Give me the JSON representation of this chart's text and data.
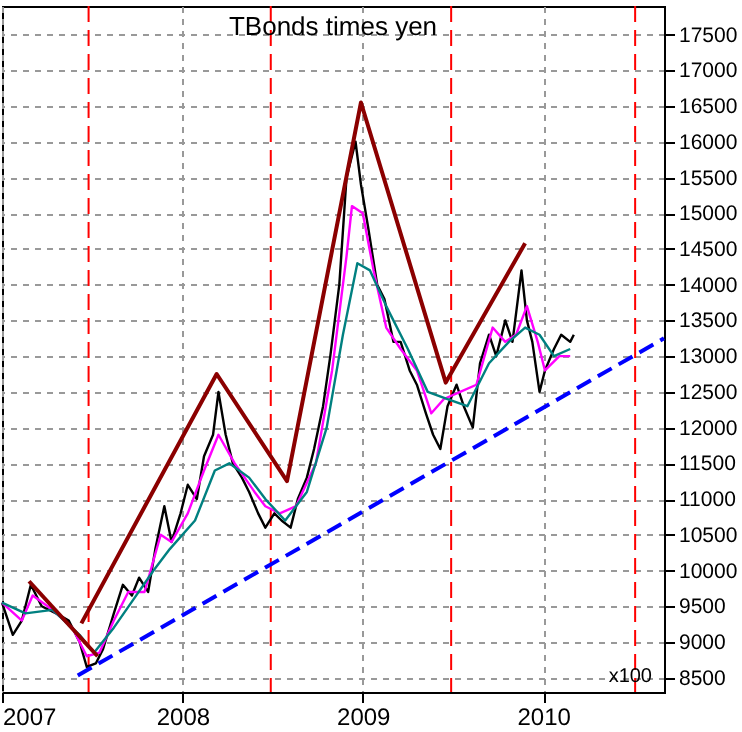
{
  "chart_data": {
    "type": "line",
    "title": "TBonds times yen",
    "xlim": [
      2007.0,
      2010.67
    ],
    "xticks": [
      2007,
      2008,
      2009,
      2010
    ],
    "ylim": [
      8300,
      17900
    ],
    "yticks": [
      8500,
      9000,
      9500,
      10000,
      10500,
      11000,
      11500,
      12000,
      12500,
      13000,
      13500,
      14000,
      14500,
      15000,
      15500,
      16000,
      16500,
      17000,
      17500
    ],
    "grid": true,
    "line_style": "solid",
    "annotations": [
      "x100"
    ],
    "ref_lines": [
      {
        "axis": "x",
        "value": 2007.48,
        "color": "#ff0000",
        "line_style": "dashed"
      },
      {
        "axis": "x",
        "value": 2008.49,
        "color": "#ff0000",
        "line_style": "dashed"
      },
      {
        "axis": "x",
        "value": 2009.49,
        "color": "#ff0000",
        "line_style": "dashed"
      },
      {
        "axis": "x",
        "value": 2010.51,
        "color": "#ff0000",
        "line_style": "dashed"
      }
    ],
    "series": [
      {
        "color": "#000000",
        "x": [
          2007.0,
          2007.06,
          2007.11,
          2007.16,
          2007.22,
          2007.3,
          2007.37,
          2007.43,
          2007.47,
          2007.52,
          2007.56,
          2007.62,
          2007.67,
          2007.72,
          2007.76,
          2007.81,
          2007.85,
          2007.9,
          2007.94,
          2007.99,
          2008.03,
          2008.08,
          2008.12,
          2008.17,
          2008.2,
          2008.24,
          2008.28,
          2008.33,
          2008.37,
          2008.42,
          2008.46,
          2008.51,
          2008.55,
          2008.6,
          2008.64,
          2008.69,
          2008.73,
          2008.78,
          2008.82,
          2008.87,
          2008.91,
          2008.96,
          2008.99,
          2009.03,
          2009.08,
          2009.12,
          2009.17,
          2009.21,
          2009.26,
          2009.3,
          2009.35,
          2009.39,
          2009.43,
          2009.47,
          2009.52,
          2009.56,
          2009.61,
          2009.65,
          2009.7,
          2009.74,
          2009.79,
          2009.83,
          2009.88,
          2009.91,
          2009.94,
          2009.98,
          2010.01,
          2010.06,
          2010.1,
          2010.15,
          2010.17
        ],
        "values": [
          9550,
          9100,
          9300,
          9800,
          9500,
          9400,
          9300,
          9000,
          8650,
          8700,
          8900,
          9400,
          9800,
          9650,
          9900,
          9700,
          10300,
          10900,
          10400,
          10800,
          11200,
          11000,
          11600,
          11900,
          12500,
          11900,
          11500,
          11300,
          11100,
          10800,
          10600,
          10800,
          10700,
          10600,
          11000,
          11300,
          11700,
          12300,
          13000,
          14000,
          15500,
          16000,
          15400,
          14800,
          14000,
          13800,
          13200,
          13200,
          12800,
          12600,
          12200,
          11900,
          11700,
          12300,
          12600,
          12300,
          12000,
          12900,
          13300,
          13000,
          13500,
          13200,
          14200,
          13500,
          13200,
          12500,
          12800,
          13100,
          13300,
          13200,
          13300
        ]
      },
      {
        "color": "#ff00ff",
        "x": [
          2007.0,
          2007.11,
          2007.17,
          2007.28,
          2007.39,
          2007.47,
          2007.54,
          2007.62,
          2007.7,
          2007.79,
          2007.88,
          2007.94,
          2008.03,
          2008.12,
          2008.2,
          2008.29,
          2008.4,
          2008.46,
          2008.54,
          2008.63,
          2008.74,
          2008.83,
          2008.91,
          2008.94,
          2009.0,
          2009.06,
          2009.13,
          2009.21,
          2009.3,
          2009.38,
          2009.45,
          2009.54,
          2009.63,
          2009.72,
          2009.79,
          2009.85,
          2009.91,
          2009.97,
          2010.01,
          2010.09,
          2010.15
        ],
        "values": [
          9550,
          9300,
          9650,
          9450,
          9200,
          8800,
          8850,
          9300,
          9700,
          9700,
          10500,
          10400,
          10800,
          11400,
          11900,
          11500,
          11100,
          10900,
          10800,
          10900,
          11500,
          12800,
          14400,
          15100,
          15000,
          14200,
          13400,
          13100,
          12800,
          12200,
          12400,
          12500,
          12600,
          13400,
          13200,
          13300,
          13700,
          13200,
          12800,
          13000,
          13000
        ]
      },
      {
        "color": "#008080",
        "x": [
          2007.0,
          2007.13,
          2007.28,
          2007.43,
          2007.51,
          2007.62,
          2007.73,
          2007.84,
          2007.93,
          2008.07,
          2008.18,
          2008.26,
          2008.37,
          2008.46,
          2008.57,
          2008.69,
          2008.8,
          2008.89,
          2008.97,
          2009.04,
          2009.13,
          2009.25,
          2009.36,
          2009.47,
          2009.58,
          2009.7,
          2009.81,
          2009.9,
          2009.98,
          2010.06,
          2010.15
        ],
        "values": [
          9550,
          9400,
          9450,
          9100,
          8850,
          9200,
          9600,
          10000,
          10300,
          10700,
          11400,
          11500,
          11300,
          11000,
          10700,
          11100,
          12000,
          13300,
          14300,
          14200,
          13700,
          13100,
          12500,
          12400,
          12300,
          12900,
          13200,
          13400,
          13300,
          13000,
          13100
        ]
      },
      {
        "color": "#8b0000",
        "x": [
          2007.44,
          2008.19,
          2008.58,
          2008.99,
          2009.46,
          2009.9
        ],
        "values": [
          9260,
          12750,
          11250,
          16550,
          12630,
          14580
        ]
      },
      {
        "color": "#8b0000",
        "x": [
          2007.15,
          2007.53
        ],
        "values": [
          9850,
          8800
        ]
      },
      {
        "color": "#0000ff",
        "line_style": "dashed",
        "x": [
          2007.42,
          2010.67
        ],
        "values": [
          8530,
          13250
        ]
      }
    ]
  }
}
